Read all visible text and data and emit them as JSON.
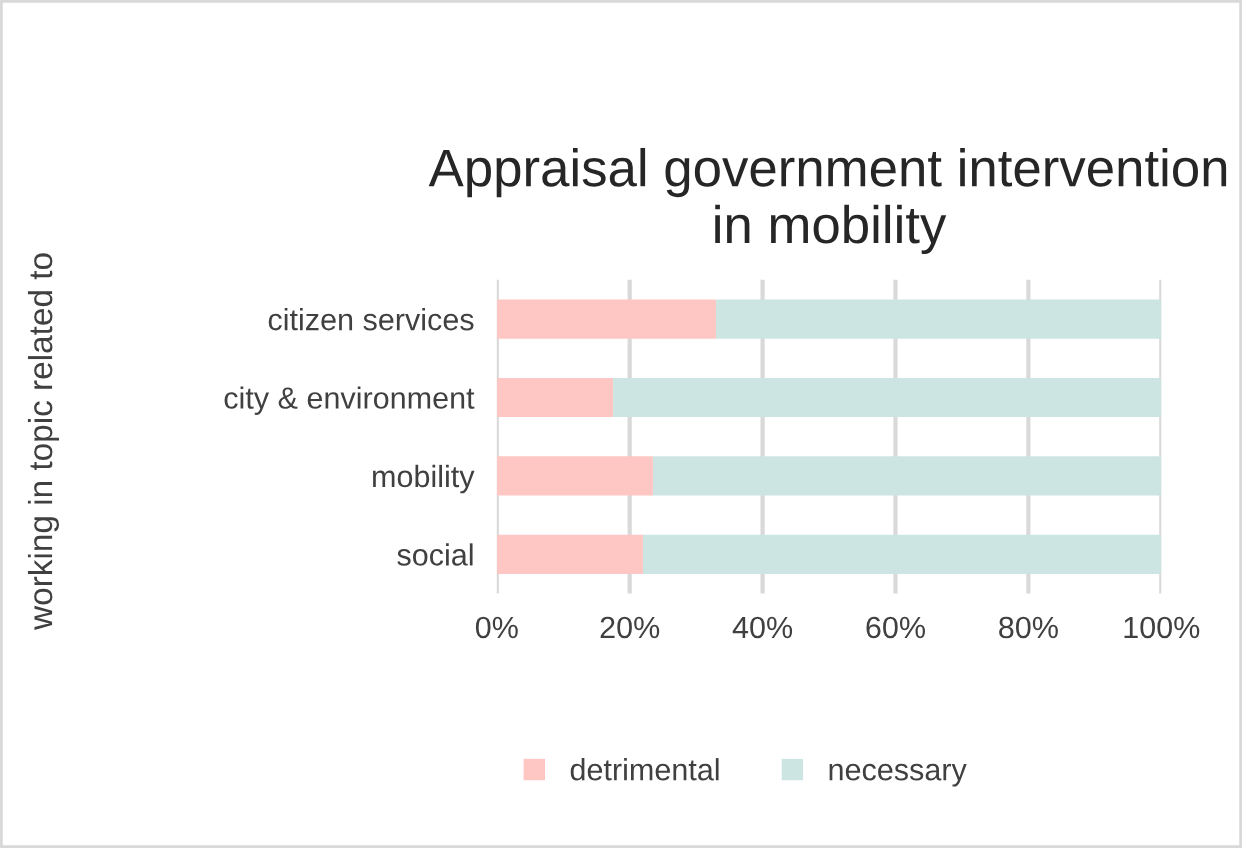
{
  "chart_data": {
    "type": "bar",
    "title": "Appraisal government intervention in mobility",
    "ylabel": "working in topic related to",
    "orientation": "horizontal",
    "stacked": true,
    "categories": [
      "citizen services",
      "city & environment",
      "mobility",
      "social"
    ],
    "series": [
      {
        "name": "detrimental",
        "color": "#ffc7c3",
        "values": [
          33,
          17.5,
          23.5,
          22
        ]
      },
      {
        "name": "necessary",
        "color": "#cce5e3",
        "values": [
          67,
          82.5,
          76.5,
          78
        ]
      }
    ],
    "xlim": [
      0,
      100
    ],
    "xticks": [
      {
        "value": 0,
        "label": "0%"
      },
      {
        "value": 20,
        "label": "20%"
      },
      {
        "value": 40,
        "label": "40%"
      },
      {
        "value": 60,
        "label": "60%"
      },
      {
        "value": 80,
        "label": "80%"
      },
      {
        "value": 100,
        "label": "100%"
      }
    ],
    "grid": "x",
    "legend": "bottom"
  }
}
